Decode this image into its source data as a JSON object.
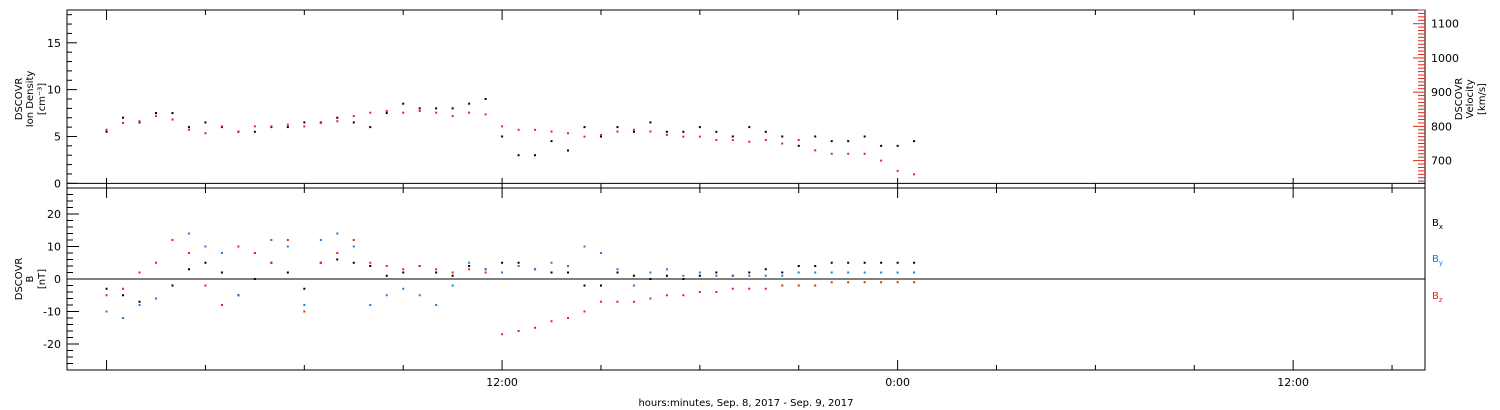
{
  "chart_data": [
    {
      "type": "scatter",
      "panel": "top",
      "ylabel_left": [
        "DSCOVR",
        "Ion Density",
        "[cm⁻³]"
      ],
      "ylabel_right": [
        "DSCOVR",
        "Velocity",
        "[km/s]"
      ],
      "ylim_left": [
        -0.5,
        18.5
      ],
      "yticks_left": [
        "0",
        "5",
        "10",
        "15"
      ],
      "ylim_right": [
        620,
        1140
      ],
      "yticks_right": [
        "700",
        "800",
        "900",
        "1000",
        "1100"
      ],
      "right_axis_color": "#e3241c",
      "series": [
        {
          "color": "#000000",
          "axis": "left",
          "x_hours": [
            0,
            0.5,
            1,
            1.5,
            2,
            2.5,
            3,
            3.5,
            4,
            4.5,
            5,
            5.5,
            6,
            6.5,
            7,
            7.5,
            8,
            8.5,
            9,
            9.5,
            10,
            10.5,
            11,
            11.5,
            12,
            12.5,
            13,
            13.5,
            14,
            14.5,
            15,
            15.5,
            16,
            16.5,
            17,
            17.5,
            18,
            18.5,
            19,
            19.5,
            20,
            20.5,
            21,
            21.5,
            22,
            22.5,
            23,
            23.5,
            24,
            24.5
          ],
          "values": [
            5.5,
            7,
            6.5,
            7.5,
            7.5,
            6,
            6.5,
            6,
            5.5,
            5.5,
            6,
            6,
            6.5,
            6.5,
            7,
            6.5,
            6,
            7.5,
            8.5,
            8,
            8,
            8,
            8.5,
            9,
            5,
            3,
            3,
            4.5,
            3.5,
            6,
            5,
            6,
            5.5,
            6.5,
            5.5,
            5.5,
            6,
            5.5,
            5,
            6,
            5.5,
            5,
            4,
            5,
            4.5,
            4.5,
            5,
            4,
            4,
            4.5
          ]
        },
        {
          "color": "#e3241c",
          "axis": "right",
          "x_hours": [
            0,
            0.5,
            1,
            1.5,
            2,
            2.5,
            3,
            3.5,
            4,
            4.5,
            5,
            5.5,
            6,
            6.5,
            7,
            7.5,
            8,
            8.5,
            9,
            9.5,
            10,
            10.5,
            11,
            11.5,
            12,
            12.5,
            13,
            13.5,
            14,
            14.5,
            15,
            15.5,
            16,
            16.5,
            17,
            17.5,
            18,
            18.5,
            19,
            19.5,
            20,
            20.5,
            21,
            21.5,
            22,
            22.5,
            23,
            23.5,
            24,
            24.5
          ],
          "values": [
            790,
            810,
            815,
            830,
            820,
            790,
            780,
            800,
            785,
            800,
            800,
            805,
            800,
            810,
            815,
            830,
            840,
            845,
            840,
            845,
            840,
            830,
            840,
            835,
            800,
            790,
            790,
            785,
            780,
            770,
            775,
            785,
            790,
            785,
            775,
            770,
            770,
            760,
            760,
            755,
            760,
            750,
            760,
            730,
            720,
            720,
            720,
            700,
            670,
            660
          ]
        }
      ],
      "hline": 0
    },
    {
      "type": "scatter",
      "panel": "bottom",
      "ylabel_left": [
        "DSCOVR",
        "B",
        "[nT]"
      ],
      "ylim": [
        -28,
        28
      ],
      "yticks": [
        "-20",
        "-10",
        "0",
        "10",
        "20"
      ],
      "legend": [
        {
          "name": "B",
          "sub": "x",
          "color": "#000000"
        },
        {
          "name": "B",
          "sub": "y",
          "color": "#1a7fe0"
        },
        {
          "name": "B",
          "sub": "z",
          "color": "#e3241c"
        }
      ],
      "series": [
        {
          "color": "#000000",
          "x_hours": [
            0,
            0.5,
            1,
            1.5,
            2,
            2.5,
            3,
            3.5,
            4,
            4.5,
            5,
            5.5,
            6,
            6.5,
            7,
            7.5,
            8,
            8.5,
            9,
            9.5,
            10,
            10.5,
            11,
            11.5,
            12,
            12.5,
            13,
            13.5,
            14,
            14.5,
            15,
            15.5,
            16,
            16.5,
            17,
            17.5,
            18,
            18.5,
            19,
            19.5,
            20,
            20.5,
            21,
            21.5,
            22,
            22.5,
            23,
            23.5,
            24,
            24.5
          ],
          "values": [
            -3,
            -5,
            -7,
            -6,
            -2,
            3,
            5,
            2,
            -5,
            0,
            5,
            2,
            -3,
            5,
            6,
            5,
            4,
            1,
            2,
            4,
            2,
            1,
            4,
            3,
            5,
            5,
            3,
            2,
            2,
            -2,
            -2,
            2,
            1,
            0,
            1,
            0,
            1,
            2,
            1,
            2,
            3,
            2,
            4,
            4,
            5,
            5,
            5,
            5,
            5,
            5
          ]
        },
        {
          "color": "#1a7fe0",
          "x_hours": [
            0,
            0.5,
            1,
            1.5,
            2,
            2.5,
            3,
            3.5,
            4,
            4.5,
            5,
            5.5,
            6,
            6.5,
            7,
            7.5,
            8,
            8.5,
            9,
            9.5,
            10,
            10.5,
            11,
            11.5,
            12,
            12.5,
            13,
            13.5,
            14,
            14.5,
            15,
            15.5,
            16,
            16.5,
            17,
            17.5,
            18,
            18.5,
            19,
            19.5,
            20,
            20.5,
            21,
            21.5,
            22,
            22.5,
            23,
            23.5,
            24,
            24.5
          ],
          "values": [
            -10,
            -12,
            -8,
            -6,
            12,
            14,
            10,
            8,
            -5,
            8,
            12,
            10,
            -8,
            12,
            14,
            10,
            -8,
            -5,
            -3,
            -5,
            -8,
            -2,
            5,
            3,
            2,
            4,
            3,
            5,
            4,
            10,
            8,
            3,
            -2,
            2,
            3,
            1,
            2,
            1,
            1,
            1,
            1,
            1,
            2,
            2,
            2,
            2,
            2,
            2,
            2,
            2
          ]
        },
        {
          "color": "#e3241c",
          "x_hours": [
            0,
            0.5,
            1,
            1.5,
            2,
            2.5,
            3,
            3.5,
            4,
            4.5,
            5,
            5.5,
            6,
            6.5,
            7,
            7.5,
            8,
            8.5,
            9,
            9.5,
            10,
            10.5,
            11,
            11.5,
            12,
            12.5,
            13,
            13.5,
            14,
            14.5,
            15,
            15.5,
            16,
            16.5,
            17,
            17.5,
            18,
            18.5,
            19,
            19.5,
            20,
            20.5,
            21,
            21.5,
            22,
            22.5,
            23,
            23.5,
            24,
            24.5
          ],
          "values": [
            -5,
            -3,
            2,
            5,
            12,
            8,
            -2,
            -8,
            10,
            8,
            5,
            12,
            -10,
            5,
            8,
            12,
            5,
            4,
            3,
            4,
            3,
            2,
            3,
            2,
            -17,
            -16,
            -15,
            -13,
            -12,
            -10,
            -7,
            -7,
            -7,
            -6,
            -5,
            -5,
            -4,
            -4,
            -3,
            -3,
            -3,
            -2,
            -2,
            -2,
            -1,
            -1,
            -1,
            -1,
            -1,
            -1
          ]
        }
      ],
      "hline": 0
    }
  ],
  "x_axis": {
    "ticks": [
      "12:00",
      "0:00",
      "12:00"
    ],
    "tick_hours": [
      12,
      24,
      36
    ],
    "xlim_hours": [
      -1.2,
      40
    ],
    "xlabel": "hours:minutes, Sep.  8, 2017 - Sep.  9, 2017"
  },
  "colors": {
    "black_series": "#000000",
    "blue_series": "#1a7fe0",
    "red_series": "#e3241c"
  }
}
